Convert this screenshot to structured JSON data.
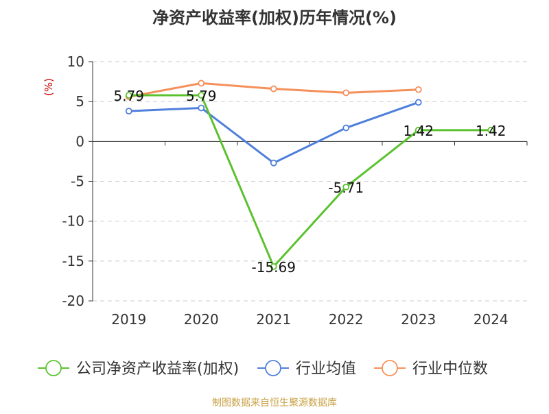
{
  "chart_data": {
    "type": "line",
    "title": "净资产收益率(加权)历年情况(%)",
    "ylabel": "(%)",
    "xlabel": "",
    "categories": [
      "2019",
      "2020",
      "2021",
      "2022",
      "2023",
      "2024"
    ],
    "ylim": [
      -20,
      10
    ],
    "yticks": [
      10,
      5,
      0,
      -5,
      -10,
      -15,
      -20
    ],
    "grid": true,
    "legend_position": "bottom",
    "series": [
      {
        "name": "公司净资产收益率(加权)",
        "color": "#5ac22e",
        "values": [
          5.79,
          5.79,
          -15.69,
          -5.71,
          1.42,
          1.42
        ],
        "labels": [
          "5.79",
          "5.79",
          "-15.69",
          "-5.71",
          "1.42",
          "1.42"
        ]
      },
      {
        "name": "行业均值",
        "color": "#4f7fdc",
        "values": [
          3.8,
          4.2,
          -2.7,
          1.7,
          4.9,
          null
        ]
      },
      {
        "name": "行业中位数",
        "color": "#f5905a",
        "values": [
          5.6,
          7.3,
          6.6,
          6.1,
          6.5,
          null
        ]
      }
    ]
  },
  "footer": {
    "source": "制图数据来自恒生聚源数据库"
  },
  "colors": {
    "title": "#333333",
    "axis": "#333333",
    "grid": "#cccccc",
    "ylabel": "#cc0000",
    "source": "#c9a043"
  }
}
